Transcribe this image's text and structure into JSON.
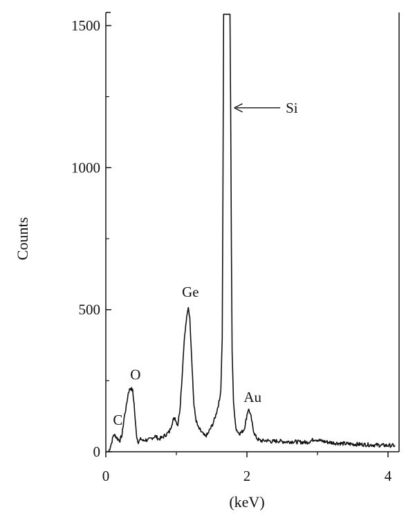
{
  "chart_data": {
    "type": "line",
    "title": "",
    "xlabel": "(keV)",
    "ylabel": "Counts",
    "xlim": [
      0,
      4.1
    ],
    "ylim": [
      0,
      1540
    ],
    "x_ticks": [
      {
        "value": 0,
        "label": "0"
      },
      {
        "value": 2,
        "label": "2"
      },
      {
        "value": 4,
        "label": "4"
      }
    ],
    "y_ticks": [
      {
        "value": 0,
        "label": "0"
      },
      {
        "value": 500,
        "label": "500"
      },
      {
        "value": 1000,
        "label": "1000"
      },
      {
        "value": 1500,
        "label": "1500"
      }
    ],
    "grid": false,
    "color": "#111111",
    "series": [
      {
        "x": [
          0.04,
          0.08,
          0.11,
          0.14,
          0.17,
          0.2,
          0.23,
          0.26,
          0.29,
          0.32,
          0.35,
          0.38,
          0.4,
          0.42,
          0.44,
          0.46,
          0.48,
          0.5,
          0.53,
          0.56,
          0.6,
          0.65,
          0.7,
          0.75,
          0.8,
          0.85,
          0.9,
          0.95,
          0.98,
          1.0,
          1.02,
          1.05,
          1.08,
          1.11,
          1.14,
          1.17,
          1.19,
          1.21,
          1.23,
          1.25,
          1.28,
          1.31,
          1.34,
          1.37,
          1.4,
          1.44,
          1.48,
          1.52,
          1.56,
          1.59,
          1.61,
          1.63,
          1.65,
          1.66,
          1.67,
          1.68,
          1.7,
          1.72,
          1.74,
          1.75,
          1.76,
          1.77,
          1.78,
          1.79,
          1.81,
          1.83,
          1.85,
          1.87,
          1.9,
          1.93,
          1.96,
          1.98,
          2.0,
          2.02,
          2.04,
          2.06,
          2.08,
          2.1,
          2.12,
          2.15,
          2.18,
          2.22,
          2.28,
          2.35,
          2.45,
          2.55,
          2.65,
          2.75,
          2.85,
          2.92,
          2.96,
          3.0,
          3.05,
          3.12,
          3.2,
          3.3,
          3.4,
          3.5,
          3.6,
          3.7,
          3.8,
          3.9,
          4.0,
          4.1
        ],
        "y": [
          0,
          30,
          60,
          55,
          45,
          40,
          60,
          120,
          160,
          210,
          225,
          215,
          170,
          100,
          50,
          35,
          40,
          45,
          38,
          42,
          40,
          48,
          55,
          45,
          50,
          60,
          70,
          110,
          120,
          105,
          95,
          150,
          260,
          390,
          460,
          510,
          470,
          370,
          260,
          160,
          110,
          85,
          75,
          65,
          55,
          60,
          80,
          100,
          130,
          160,
          180,
          220,
          400,
          900,
          1540,
          1540,
          1540,
          1540,
          1540,
          1540,
          1540,
          1200,
          700,
          350,
          180,
          110,
          80,
          70,
          65,
          70,
          80,
          100,
          130,
          150,
          140,
          120,
          90,
          70,
          55,
          45,
          40,
          38,
          40,
          36,
          38,
          35,
          36,
          34,
          33,
          40,
          45,
          42,
          38,
          35,
          32,
          30,
          28,
          27,
          26,
          25,
          24,
          23,
          22,
          22
        ]
      }
    ],
    "annotations": [
      {
        "text": "C",
        "x": 0.17,
        "y": 95
      },
      {
        "text": "O",
        "x": 0.42,
        "y": 255
      },
      {
        "text": "Ge",
        "x": 1.2,
        "y": 545
      },
      {
        "text": "Au",
        "x": 2.08,
        "y": 175
      },
      {
        "text": "Si",
        "x": 2.55,
        "y": 1235,
        "arrow_to": {
          "x": 1.82,
          "y": 1235
        }
      }
    ]
  }
}
